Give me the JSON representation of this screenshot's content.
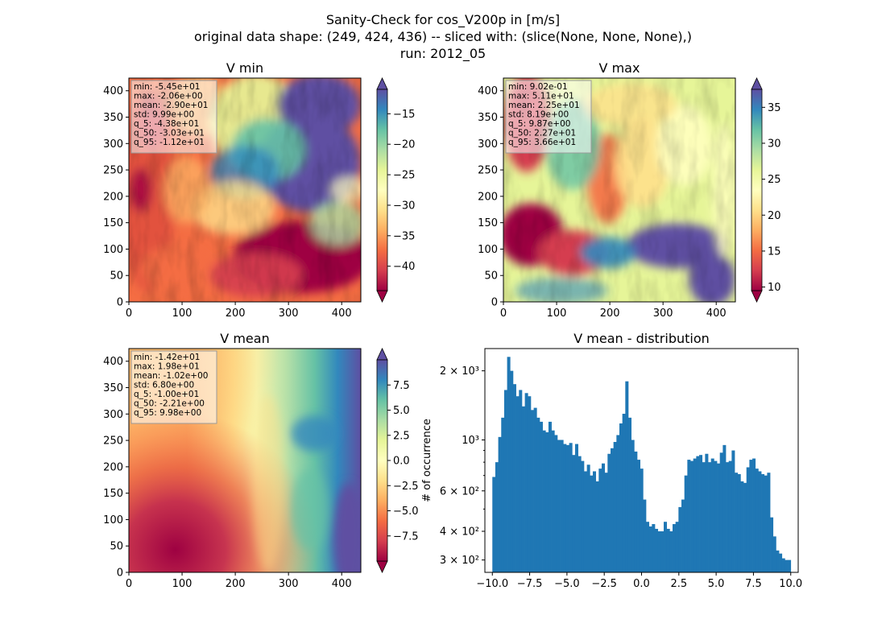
{
  "title_lines": [
    "Sanity-Check for cos_V200p in [m/s]",
    "original data shape: (249, 424, 436) -- sliced with: (slice(None, None, None),)",
    "run: 2012_05"
  ],
  "chart_data": [
    {
      "type": "heatmap",
      "title": "V min",
      "xlim": [
        0,
        436
      ],
      "ylim": [
        0,
        424
      ],
      "xticks": [
        0,
        100,
        200,
        300,
        400
      ],
      "yticks": [
        0,
        50,
        100,
        150,
        200,
        250,
        300,
        350,
        400
      ],
      "colormap": "Spectral",
      "clim": [
        -44,
        -11
      ],
      "colorbar_ticks": [
        -40,
        -35,
        -30,
        -25,
        -20,
        -15
      ],
      "colorbar_tick_labels": [
        "−40",
        "−35",
        "−30",
        "−25",
        "−20",
        "−15"
      ],
      "colorbar_extend": "both",
      "stats": [
        "min: -5.45e+01",
        "max: -2.06e+00",
        "mean: -2.90e+01",
        "std: 9.99e+00",
        "q_5: -4.38e+01",
        "q_50: -3.03e+01",
        "q_95: -1.12e+01"
      ]
    },
    {
      "type": "heatmap",
      "title": "V max",
      "xlim": [
        0,
        436
      ],
      "ylim": [
        0,
        424
      ],
      "xticks": [
        0,
        100,
        200,
        300,
        400
      ],
      "yticks": [
        0,
        50,
        100,
        150,
        200,
        250,
        300,
        350,
        400
      ],
      "colormap": "Spectral",
      "clim": [
        9.5,
        37.5
      ],
      "colorbar_ticks": [
        10,
        15,
        20,
        25,
        30,
        35
      ],
      "colorbar_tick_labels": [
        "10",
        "15",
        "20",
        "25",
        "30",
        "35"
      ],
      "colorbar_extend": "both",
      "stats": [
        "min: 9.02e-01",
        "max: 5.11e+01",
        "mean: 2.25e+01",
        "std: 8.19e+00",
        "q_5: 9.87e+00",
        "q_50: 2.27e+01",
        "q_95: 3.66e+01"
      ]
    },
    {
      "type": "heatmap",
      "title": "V mean",
      "xlim": [
        0,
        436
      ],
      "ylim": [
        0,
        424
      ],
      "xticks": [
        0,
        100,
        200,
        300,
        400
      ],
      "yticks": [
        0,
        50,
        100,
        150,
        200,
        250,
        300,
        350,
        400
      ],
      "colormap": "Spectral",
      "clim": [
        -10,
        10
      ],
      "colorbar_ticks": [
        -7.5,
        -5.0,
        -2.5,
        0.0,
        2.5,
        5.0,
        7.5
      ],
      "colorbar_tick_labels": [
        "−7.5",
        "−5.0",
        "−2.5",
        "0.0",
        "2.5",
        "5.0",
        "7.5"
      ],
      "colorbar_extend": "both",
      "stats": [
        "min: -1.42e+01",
        "max: 1.98e+01",
        "mean: -1.02e+00",
        "std: 6.80e+00",
        "q_5: -1.00e+01",
        "q_50: -2.21e+00",
        "q_95: 9.98e+00"
      ]
    },
    {
      "type": "bar",
      "title": "V mean - distribution",
      "ylabel": "# of occurrence",
      "yscale": "log",
      "xlim": [
        -10.5,
        10.5
      ],
      "ylim": [
        265,
        2500
      ],
      "bar_color": "#1f77b4",
      "xticks": [
        -10,
        -7.5,
        -5,
        -2.5,
        0,
        2.5,
        5,
        7.5,
        10
      ],
      "xtick_labels": [
        "−10.0",
        "−7.5",
        "−5.0",
        "−2.5",
        "0.0",
        "2.5",
        "5.0",
        "7.5",
        "10.0"
      ],
      "yticks": [
        300,
        400,
        600,
        1000,
        2000
      ],
      "ytick_labels": [
        "3 × 10²",
        "4 × 10²",
        "6 × 10²",
        "10³",
        "2 × 10³"
      ],
      "bin_range": [
        -10,
        10
      ],
      "counts": [
        690,
        800,
        1030,
        1250,
        1650,
        2300,
        2000,
        1750,
        1550,
        1650,
        1400,
        1600,
        1550,
        1350,
        1380,
        1250,
        1200,
        1100,
        1080,
        1200,
        1100,
        1050,
        1000,
        1000,
        960,
        950,
        970,
        860,
        960,
        850,
        810,
        730,
        780,
        700,
        730,
        660,
        750,
        790,
        720,
        870,
        920,
        980,
        1050,
        1180,
        1300,
        1800,
        1250,
        1000,
        890,
        820,
        750,
        550,
        440,
        420,
        430,
        410,
        400,
        400,
        440,
        410,
        400,
        430,
        440,
        510,
        550,
        700,
        820,
        810,
        830,
        850,
        860,
        800,
        870,
        800,
        830,
        810,
        790,
        880,
        950,
        800,
        810,
        900,
        720,
        710,
        660,
        650,
        760,
        820,
        830,
        750,
        730,
        710,
        700,
        720,
        460,
        380,
        330,
        320,
        305,
        300,
        300
      ]
    }
  ]
}
